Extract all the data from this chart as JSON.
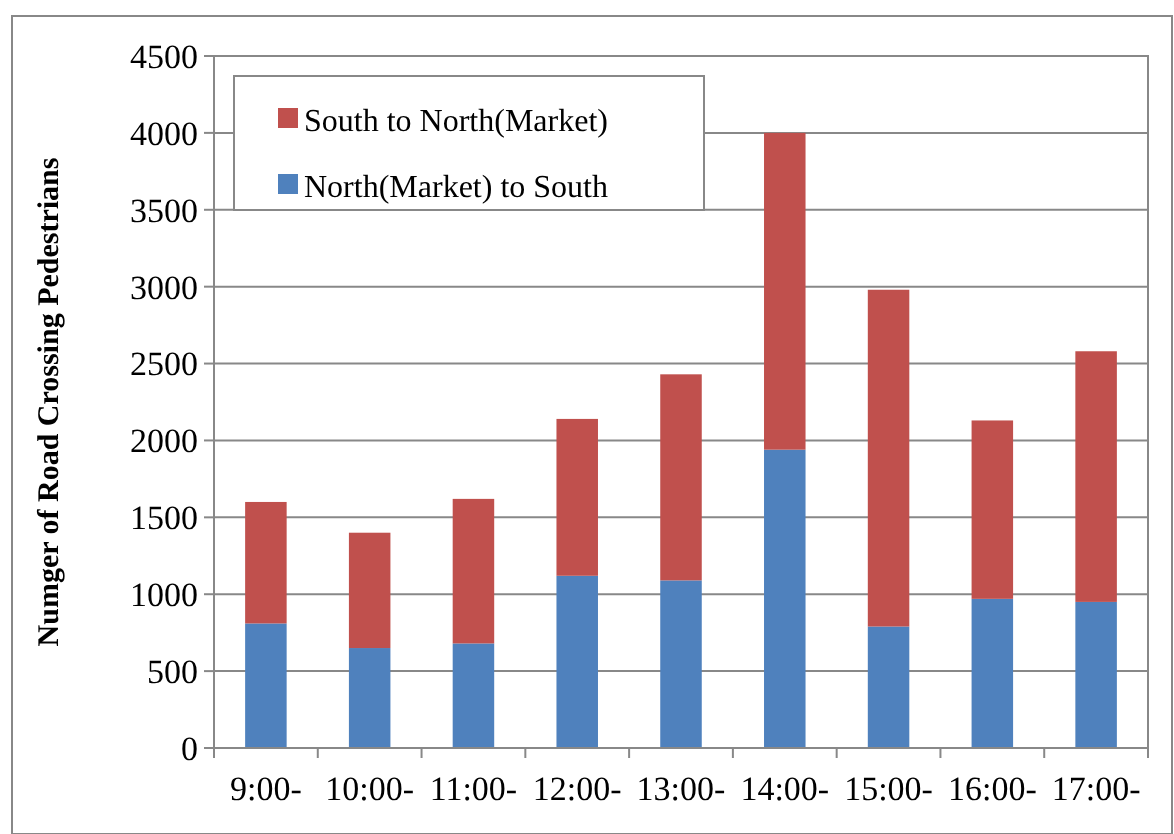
{
  "chart_data": {
    "type": "bar",
    "stacked": true,
    "ylabel": "Numger of Road Crossing Pedestrians",
    "categories": [
      "9:00-",
      "10:00-",
      "11:00-",
      "12:00-",
      "13:00-",
      "14:00-",
      "15:00-",
      "16:00-",
      "17:00-"
    ],
    "series": [
      {
        "name": "North(Market) to South",
        "color": "#4f81bd",
        "values": [
          810,
          650,
          680,
          1120,
          1090,
          1940,
          790,
          970,
          950
        ]
      },
      {
        "name": "South to North(Market)",
        "color": "#c0504d",
        "values": [
          790,
          750,
          940,
          1020,
          1340,
          2060,
          2190,
          1160,
          1630
        ]
      }
    ],
    "ylim": [
      0,
      4500
    ],
    "yticks": [
      0,
      500,
      1000,
      1500,
      2000,
      2500,
      3000,
      3500,
      4000,
      4500
    ],
    "grid": "y",
    "legend": "top left"
  }
}
